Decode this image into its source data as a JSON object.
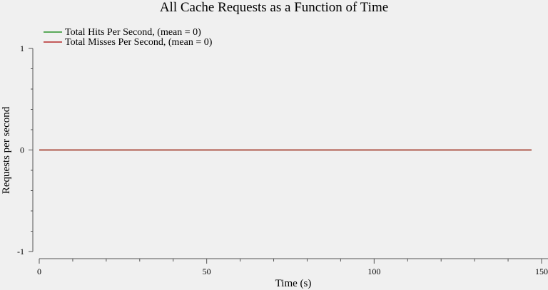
{
  "chart_data": {
    "type": "line",
    "title": "All Cache Requests as a Function of Time",
    "xlabel": "Time (s)",
    "ylabel": "Requests per second",
    "xlim": [
      0,
      150
    ],
    "ylim": [
      -1,
      1
    ],
    "x_ticks": [
      0,
      50,
      100,
      150
    ],
    "x_minor_step": 10,
    "y_ticks": [
      -1,
      0,
      1
    ],
    "y_minor_step": 0.2,
    "grid": false,
    "legend_position": "top-left",
    "series": [
      {
        "name": "Total Hits Per Second, (mean = 0)",
        "color": "#008000",
        "x": [
          0,
          147
        ],
        "y": [
          0,
          0
        ]
      },
      {
        "name": "Total Misses Per Second, (mean = 0)",
        "color": "#aa0000",
        "x": [
          0,
          147
        ],
        "y": [
          0,
          0
        ]
      }
    ]
  }
}
